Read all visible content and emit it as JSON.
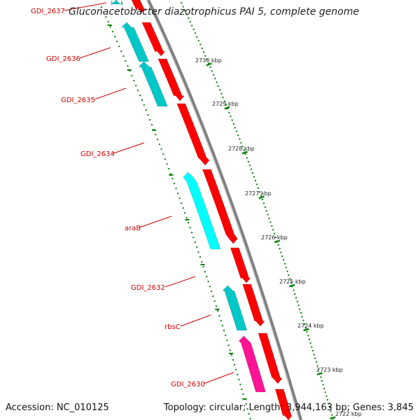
{
  "title": "Gluconacetobacter diazotrophicus PAI 5, complete genome",
  "footer": {
    "accession": "Accession: NC_010125",
    "summary": "Topology: circular; Length: 3,944,163 bp; Genes: 3,845"
  },
  "colors": {
    "forward_gene": "#ff0000",
    "reverse_gene": "#00c8c8",
    "reverse_gene_bright": "#00ffff",
    "rna_gene": "#ff1493",
    "backbone": "#808080",
    "tick": "#008000",
    "label": "#cc0000"
  },
  "gene_labels": [
    "GDI_2637",
    "GDI_2636",
    "GDI_2635",
    "GDI_2634",
    "araB",
    "GDI_2632",
    "rbsC",
    "GDI_2630"
  ],
  "ticks": [
    "2730 kbp",
    "2729 kbp",
    "2728 kbp",
    "2727 kbp",
    "2726 kbp",
    "2725 kbp",
    "2724 kbp",
    "2723 kbp",
    "2722 kbp"
  ]
}
